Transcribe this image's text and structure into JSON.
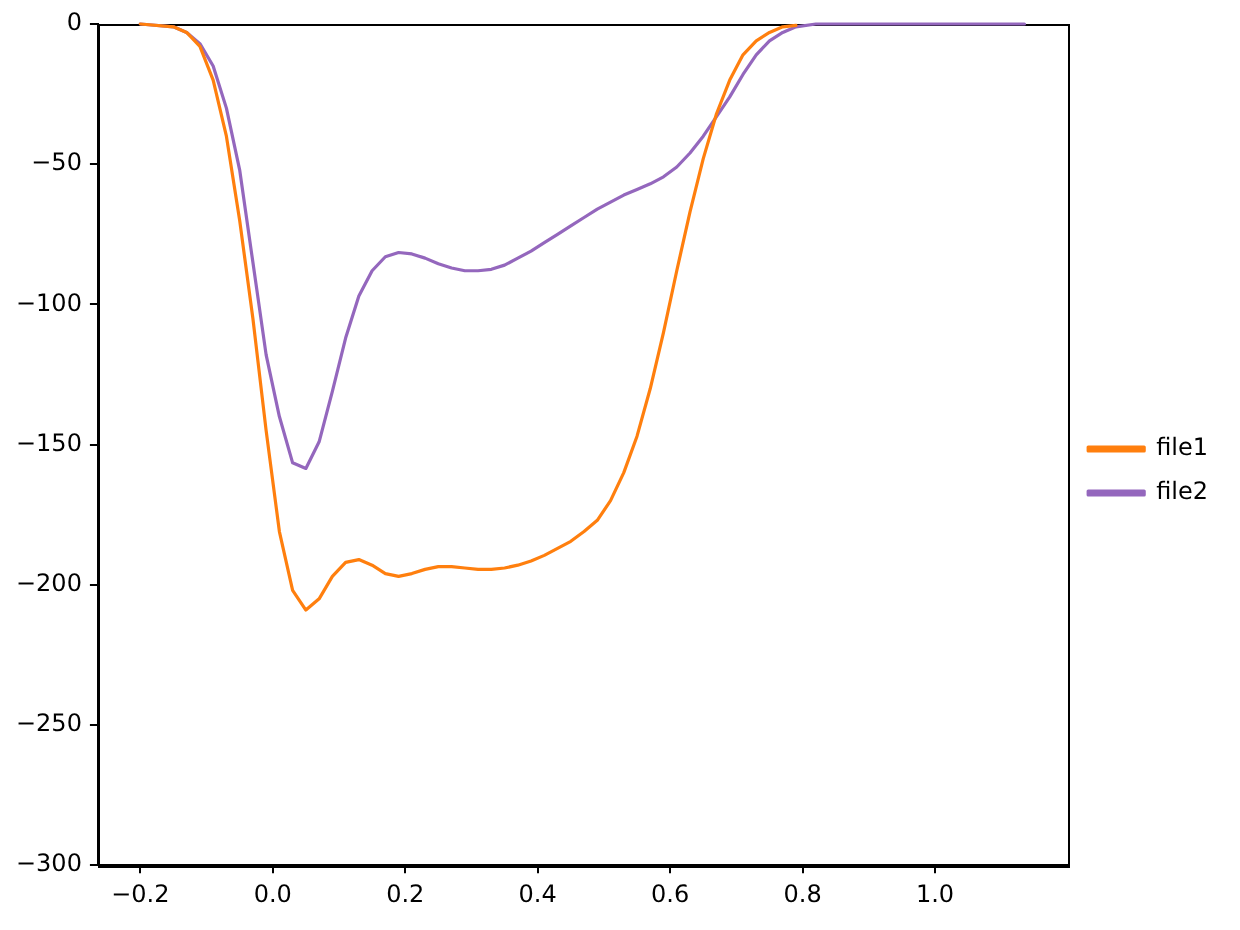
{
  "chart_data": {
    "type": "line",
    "legend": "right",
    "grid": false,
    "marker": "none",
    "line_style": "solid",
    "xlim": [
      -0.264,
      1.201
    ],
    "ylim": [
      -300,
      0
    ],
    "xticks": [
      {
        "value": -0.2,
        "label": "−0.2"
      },
      {
        "value": 0,
        "label": "0.0"
      },
      {
        "value": 0.2,
        "label": "0.2"
      },
      {
        "value": 0.4,
        "label": "0.4"
      },
      {
        "value": 0.6,
        "label": "0.6"
      },
      {
        "value": 0.8,
        "label": "0.8"
      },
      {
        "value": 1.0,
        "label": "1.0"
      }
    ],
    "yticks": [
      {
        "value": -300,
        "label": "−300"
      },
      {
        "value": -250,
        "label": "−250"
      },
      {
        "value": -200,
        "label": "−200"
      },
      {
        "value": -150,
        "label": "−150"
      },
      {
        "value": -100,
        "label": "−100"
      },
      {
        "value": -50,
        "label": "−50"
      },
      {
        "value": 0,
        "label": "0"
      }
    ],
    "x": [
      -0.2,
      -0.15,
      -0.13,
      -0.11,
      -0.09,
      -0.07,
      -0.05,
      -0.03,
      -0.01,
      0.01,
      0.03,
      0.05,
      0.07,
      0.09,
      0.11,
      0.13,
      0.15,
      0.17,
      0.19,
      0.21,
      0.23,
      0.25,
      0.27,
      0.29,
      0.31,
      0.33,
      0.35,
      0.37,
      0.39,
      0.41,
      0.43,
      0.45,
      0.47,
      0.49,
      0.51,
      0.53,
      0.55,
      0.57,
      0.59,
      0.61,
      0.63,
      0.65,
      0.67,
      0.69,
      0.71,
      0.73,
      0.75,
      0.77,
      0.79,
      0.82,
      1.135
    ],
    "series": [
      {
        "name": "file1",
        "color": "#ff7f0e",
        "values": [
          0,
          -1,
          -3,
          -8,
          -20,
          -40,
          -70,
          -105,
          -145,
          -181,
          -202,
          -209,
          -205,
          -197,
          -192,
          -191,
          -193,
          -196,
          -197,
          -196,
          -194.5,
          -193.5,
          -193.5,
          -194,
          -194.5,
          -194.5,
          -194,
          -193,
          -191.5,
          -189.5,
          -187,
          -184.5,
          -181,
          -177,
          -170,
          -160,
          -147,
          -130,
          -110,
          -88,
          -67,
          -48,
          -32,
          -20,
          -11,
          -6,
          -3,
          -1,
          -0.5,
          null,
          null
        ]
      },
      {
        "name": "file2",
        "color": "#9467bd",
        "values": [
          0,
          -1,
          -3,
          -7,
          -15,
          -30,
          -52,
          -85,
          -118,
          -140,
          -156.5,
          -158.5,
          -149,
          -131,
          -112,
          -97,
          -88,
          -83,
          -81.5,
          -82,
          -83.5,
          -85.5,
          -87,
          -88,
          -88,
          -87.5,
          -86,
          -83.5,
          -81,
          -78,
          -75,
          -72,
          -69,
          -66,
          -63.5,
          -61,
          -59,
          -57,
          -54.5,
          -51,
          -46,
          -40,
          -33,
          -26,
          -18,
          -11,
          -6,
          -3,
          -1,
          0,
          0
        ]
      }
    ]
  }
}
